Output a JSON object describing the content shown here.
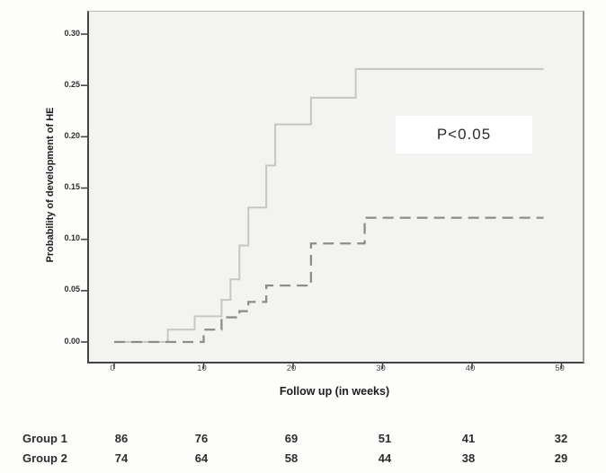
{
  "chart_data": {
    "type": "line",
    "subtype": "step-survival",
    "title": "",
    "xlabel": "Follow up (in weeks)",
    "ylabel": "Probability of development of HE",
    "annotation": "P<0.05",
    "grid": false,
    "legend_position": "none",
    "x_ticks": [
      0,
      10,
      20,
      30,
      40,
      50
    ],
    "y_ticks": [
      "0.00",
      "0.05",
      "0.10",
      "0.15",
      "0.20",
      "0.25",
      "0.30"
    ],
    "xlim": [
      -3,
      52.5
    ],
    "ylim": [
      -0.02,
      0.32
    ],
    "axis_colors": {
      "axis": "#454545",
      "frame": "#b0b0ae"
    },
    "series": [
      {
        "name": "Group 1",
        "line_style": "solid",
        "color": "#c6c6c4",
        "end_week": 48,
        "steps": [
          [
            0,
            0
          ],
          [
            6,
            0.012
          ],
          [
            9,
            0.025
          ],
          [
            12,
            0.041
          ],
          [
            13,
            0.061
          ],
          [
            14,
            0.094
          ],
          [
            15,
            0.131
          ],
          [
            17,
            0.172
          ],
          [
            18,
            0.212
          ],
          [
            22,
            0.238
          ],
          [
            27,
            0.266
          ]
        ]
      },
      {
        "name": "Group 2",
        "line_style": "dashed",
        "color": "#8d8d8b",
        "end_week": 48,
        "steps": [
          [
            0,
            0
          ],
          [
            10,
            0.012
          ],
          [
            12,
            0.024
          ],
          [
            14,
            0.03
          ],
          [
            15,
            0.039
          ],
          [
            17,
            0.055
          ],
          [
            22,
            0.096
          ],
          [
            28,
            0.121
          ]
        ]
      }
    ]
  },
  "risk_table": {
    "rows": [
      {
        "label": "Group 1",
        "values": [
          "86",
          "76",
          "69",
          "51",
          "41",
          "32"
        ]
      },
      {
        "label": "Group 2",
        "values": [
          "74",
          "64",
          "58",
          "44",
          "38",
          "29"
        ]
      }
    ]
  }
}
